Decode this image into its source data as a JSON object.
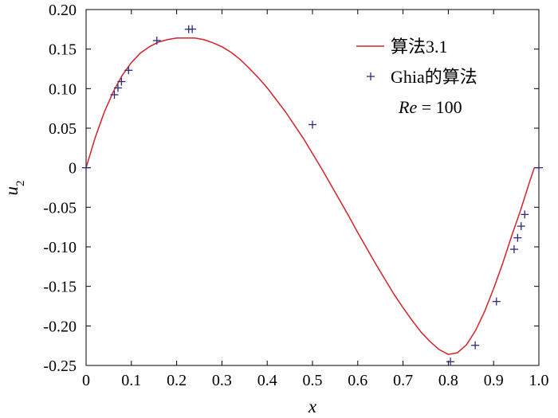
{
  "chart_data": {
    "type": "line",
    "xlabel": "x",
    "ylabel": "u",
    "ylabel_sub": "2",
    "xlim": [
      0,
      1.0
    ],
    "ylim": [
      -0.25,
      0.2
    ],
    "x_ticks": [
      0,
      0.1,
      0.2,
      0.3,
      0.4,
      0.5,
      0.6,
      0.7,
      0.8,
      0.9,
      1.0
    ],
    "x_tick_labels": [
      "0",
      "0.1",
      "0.2",
      "0.3",
      "0.4",
      "0.5",
      "0.6",
      "0.7",
      "0.8",
      "0.9",
      "1.0"
    ],
    "y_ticks": [
      0.2,
      0.15,
      0.1,
      0.05,
      0,
      -0.05,
      -0.1,
      -0.15,
      -0.2,
      -0.25
    ],
    "y_tick_labels": [
      "0.20",
      "0.15",
      "0.10",
      "0.05",
      "0",
      "-0.05",
      "-0.10",
      "-0.15",
      "-0.20",
      "-0.25"
    ],
    "grid": false,
    "legend_position": "top-right",
    "series": [
      {
        "name": "算法3.1",
        "kind": "line",
        "color": "#d2232a",
        "x": [
          0,
          0.02,
          0.04,
          0.06,
          0.08,
          0.1,
          0.12,
          0.14,
          0.16,
          0.18,
          0.2,
          0.22,
          0.24,
          0.26,
          0.28,
          0.3,
          0.32,
          0.34,
          0.36,
          0.38,
          0.4,
          0.42,
          0.44,
          0.46,
          0.48,
          0.5,
          0.52,
          0.54,
          0.56,
          0.58,
          0.6,
          0.62,
          0.64,
          0.66,
          0.68,
          0.7,
          0.72,
          0.74,
          0.76,
          0.78,
          0.8,
          0.82,
          0.84,
          0.86,
          0.88,
          0.9,
          0.92,
          0.94,
          0.96,
          0.98,
          0.99
        ],
        "y": [
          0,
          0.038,
          0.07,
          0.096,
          0.117,
          0.133,
          0.145,
          0.153,
          0.159,
          0.162,
          0.164,
          0.164,
          0.164,
          0.162,
          0.158,
          0.153,
          0.146,
          0.137,
          0.126,
          0.114,
          0.101,
          0.086,
          0.071,
          0.054,
          0.037,
          0.018,
          -0.001,
          -0.021,
          -0.041,
          -0.061,
          -0.082,
          -0.102,
          -0.122,
          -0.141,
          -0.16,
          -0.177,
          -0.193,
          -0.208,
          -0.22,
          -0.23,
          -0.236,
          -0.234,
          -0.224,
          -0.206,
          -0.182,
          -0.153,
          -0.121,
          -0.086,
          -0.053,
          -0.017,
          0
        ]
      },
      {
        "name": "Ghia的算法",
        "kind": "scatter",
        "marker": "+",
        "color": "#2d2a7a",
        "x": [
          0,
          0.0625,
          0.0703,
          0.0781,
          0.0938,
          0.1563,
          0.2266,
          0.2344,
          0.5,
          0.8047,
          0.8594,
          0.9063,
          0.9453,
          0.9531,
          0.9609,
          0.9688,
          1.0
        ],
        "y": [
          0,
          0.0923,
          0.1009,
          0.1089,
          0.1232,
          0.1608,
          0.1751,
          0.1753,
          0.0545,
          -0.2453,
          -0.2245,
          -0.1691,
          -0.1031,
          -0.0886,
          -0.0739,
          -0.0591,
          0
        ]
      }
    ],
    "annotation": {
      "re_symbol": "Re",
      "re_rest": " = 100"
    }
  }
}
